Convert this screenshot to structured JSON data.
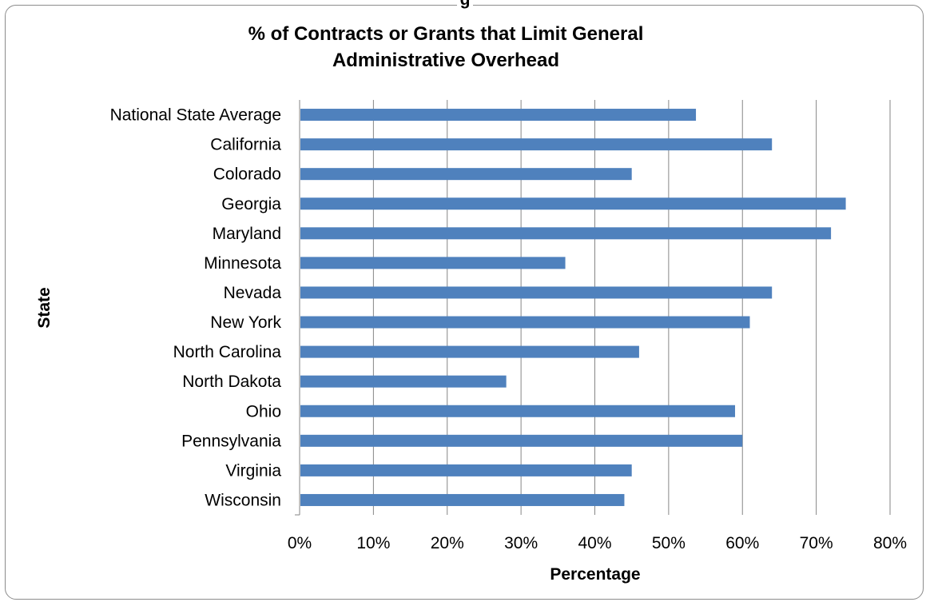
{
  "chart_data": {
    "type": "bar",
    "orientation": "horizontal",
    "clipped_top_text": "g",
    "title_lines": [
      "% of Contracts or Grants that Limit General",
      "Administrative Overhead"
    ],
    "xlabel": "Percentage",
    "ylabel": "State",
    "categories": [
      "National State Average",
      "California",
      "Colorado",
      "Georgia",
      "Maryland",
      "Minnesota",
      "Nevada",
      "New York",
      "North Carolina",
      "North Dakota",
      "Ohio",
      "Pennsylvania",
      "Virginia",
      "Wisconsin"
    ],
    "values": [
      53.7,
      64,
      45,
      74,
      72,
      36,
      64,
      61,
      46,
      28,
      59,
      60,
      45,
      44
    ],
    "xlim": [
      0,
      80
    ],
    "xticks": [
      0,
      10,
      20,
      30,
      40,
      50,
      60,
      70,
      80
    ],
    "xtick_labels": [
      "0%",
      "10%",
      "20%",
      "30%",
      "40%",
      "50%",
      "60%",
      "70%",
      "80%"
    ],
    "bar_color": "#4f81bd",
    "grid": "vertical",
    "legend": "none"
  }
}
